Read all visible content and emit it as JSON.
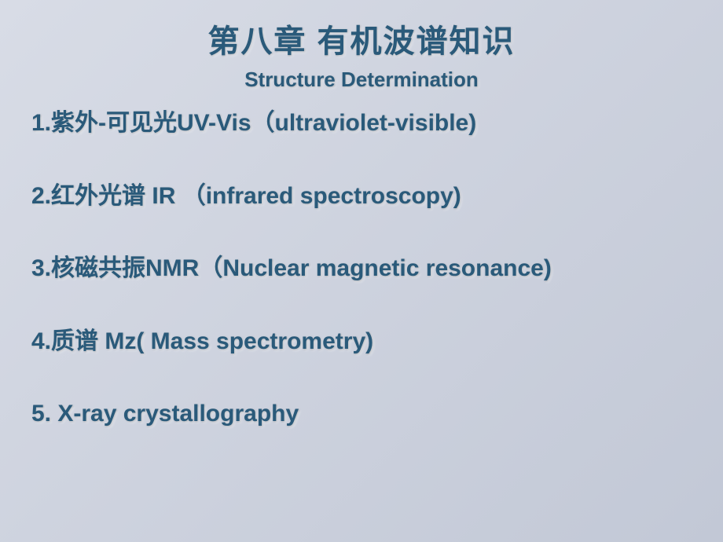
{
  "title": "第八章 有机波谱知识",
  "subtitle": "Structure Determination",
  "items": [
    "1.紫外-可见光UV-Vis（ultraviolet-visible)",
    "2.红外光谱 IR （infrared spectroscopy)",
    "3.核磁共振NMR（Nuclear magnetic resonance)",
    "4.质谱 Mz( Mass spectrometry)",
    "5. X-ray crystallography"
  ],
  "colors": {
    "text": "#2a5a7a",
    "bg_start": "#d8dce6",
    "bg_end": "#c2c8d6"
  },
  "fontsize": {
    "title": 40,
    "subtitle": 26,
    "item": 30
  }
}
